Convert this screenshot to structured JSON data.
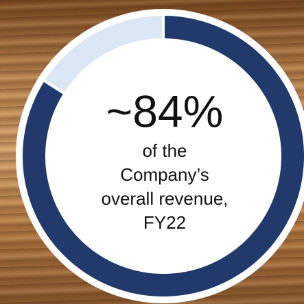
{
  "chart_data": {
    "type": "donut",
    "values": [
      84,
      16
    ],
    "value_labels": [
      "~84%",
      null
    ],
    "colors": [
      "#213a6b",
      "#dbe7f5"
    ],
    "text_lines": [
      "of the",
      "Company’s",
      "overall revenue,",
      "FY22"
    ]
  }
}
